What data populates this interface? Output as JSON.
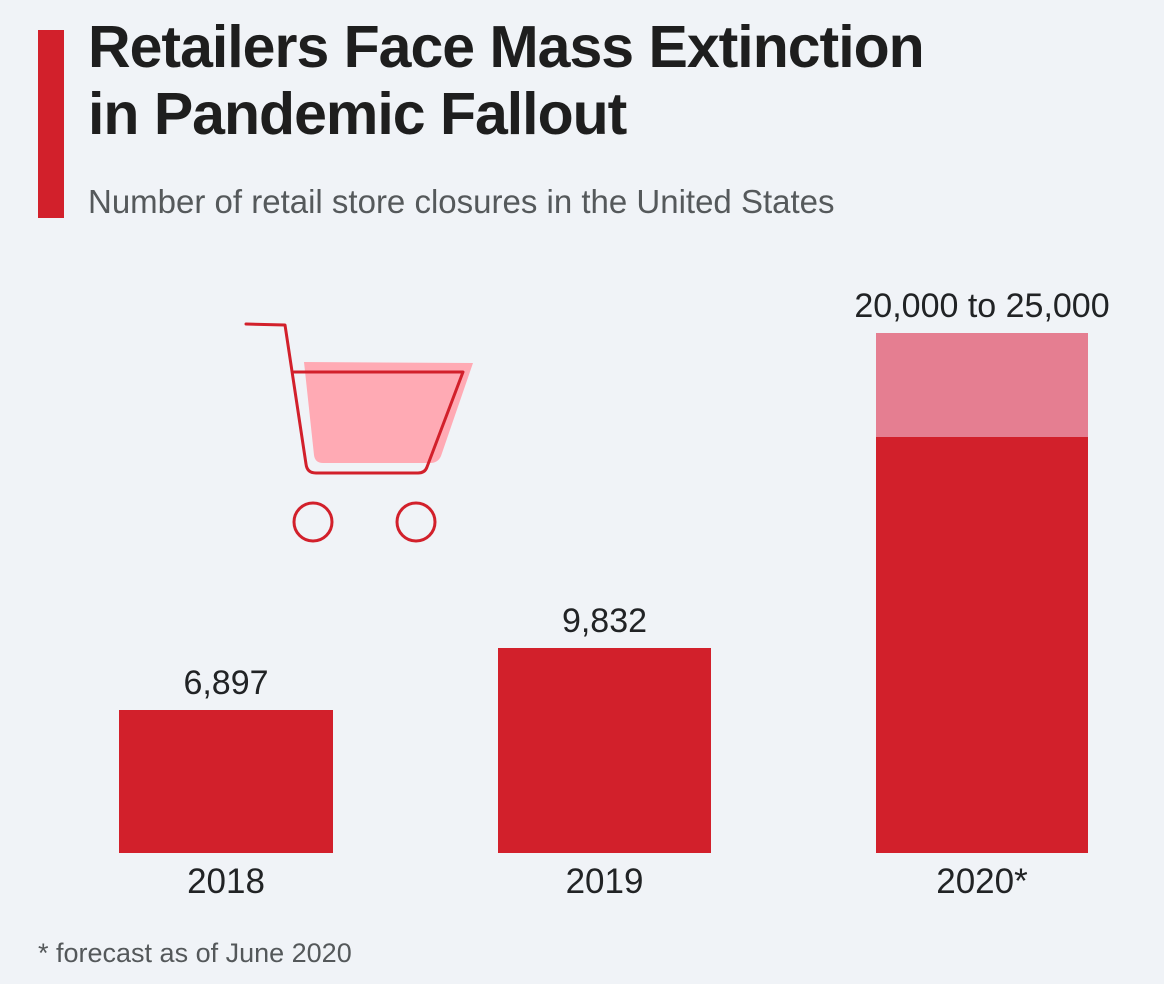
{
  "header": {
    "title_lines": [
      "Retailers Face Mass Extinction",
      "in Pandemic Fallout"
    ],
    "subtitle": "Number of retail store closures in the United States"
  },
  "chart_data": {
    "type": "bar",
    "title": "Retailers Face Mass Extinction in Pandemic Fallout",
    "subtitle": "Number of retail store closures in the United States",
    "categories": [
      "2018",
      "2019",
      "2020*"
    ],
    "series": [
      {
        "name": "Retail store closures",
        "values": [
          6897,
          9832,
          {
            "low": 20000,
            "high": 25000
          }
        ]
      }
    ],
    "value_labels": [
      "6,897",
      "9,832",
      "20,000 to 25,000"
    ],
    "ylim": [
      0,
      25000
    ],
    "grid": false,
    "legend": false,
    "bar_color": "#d2202b",
    "range_color": "#e57e91"
  },
  "footnote": "* forecast as of June 2020",
  "colors": {
    "background": "#f0f3f7",
    "accent_red": "#d2202b",
    "range_pink": "#e57e91",
    "cart_fill_pink": "#ffaab4",
    "title_text": "#1e1e1e",
    "subtitle_text": "#55595b"
  },
  "icons": {
    "cart": "shopping-cart"
  }
}
